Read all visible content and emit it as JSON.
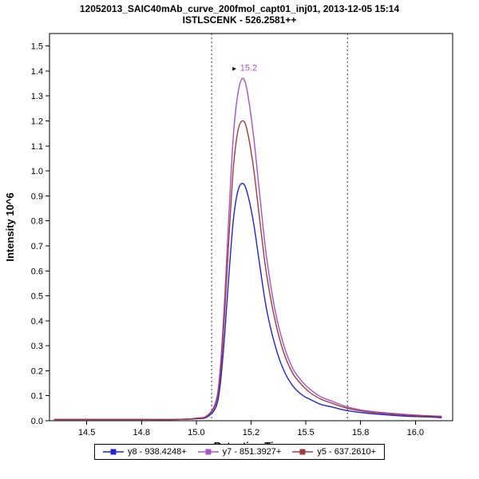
{
  "title": {
    "line1": "12052013_SAIC40mAb_curve_200fmol_capt01_inj01, 2013-12-05 15:14",
    "line2": "ISTLSCENK - 526.2581++"
  },
  "chart_data": {
    "type": "line",
    "xlabel": "Retention Time",
    "ylabel": "Intensity 10^6",
    "xlim": [
      14.33,
      16.17
    ],
    "ylim": [
      0,
      1.55
    ],
    "x_ticks": [
      {
        "pos": 14.5,
        "label": "14.5"
      },
      {
        "pos": 14.75,
        "label": "14.8"
      },
      {
        "pos": 15.0,
        "label": "15.0"
      },
      {
        "pos": 15.25,
        "label": "15.2"
      },
      {
        "pos": 15.5,
        "label": "15.5"
      },
      {
        "pos": 15.75,
        "label": "15.8"
      },
      {
        "pos": 16.0,
        "label": "16.0"
      }
    ],
    "y_ticks": [
      {
        "pos": 0.0,
        "label": "0.0"
      },
      {
        "pos": 0.1,
        "label": "0.1"
      },
      {
        "pos": 0.2,
        "label": "0.2"
      },
      {
        "pos": 0.3,
        "label": "0.3"
      },
      {
        "pos": 0.4,
        "label": "0.4"
      },
      {
        "pos": 0.5,
        "label": "0.5"
      },
      {
        "pos": 0.6,
        "label": "0.6"
      },
      {
        "pos": 0.7,
        "label": "0.7"
      },
      {
        "pos": 0.8,
        "label": "0.8"
      },
      {
        "pos": 0.9,
        "label": "0.9"
      },
      {
        "pos": 1.0,
        "label": "1.0"
      },
      {
        "pos": 1.1,
        "label": "1.1"
      },
      {
        "pos": 1.2,
        "label": "1.2"
      },
      {
        "pos": 1.3,
        "label": "1.3"
      },
      {
        "pos": 1.4,
        "label": "1.4"
      },
      {
        "pos": 1.5,
        "label": "1.5"
      }
    ],
    "x": [
      14.35,
      14.5,
      14.7,
      14.9,
      15.0,
      15.05,
      15.09,
      15.11,
      15.13,
      15.15,
      15.17,
      15.19,
      15.21,
      15.23,
      15.26,
      15.29,
      15.32,
      15.36,
      15.4,
      15.44,
      15.48,
      15.52,
      15.57,
      15.62,
      15.68,
      15.76,
      15.86,
      15.96,
      16.06,
      16.12
    ],
    "series": [
      {
        "name": "y8 - 938.4248+",
        "color": "#2222d6",
        "values": [
          0.005,
          0.005,
          0.005,
          0.005,
          0.008,
          0.015,
          0.055,
          0.15,
          0.35,
          0.6,
          0.81,
          0.92,
          0.95,
          0.92,
          0.8,
          0.62,
          0.45,
          0.3,
          0.2,
          0.14,
          0.105,
          0.085,
          0.065,
          0.055,
          0.042,
          0.032,
          0.024,
          0.018,
          0.015,
          0.012
        ]
      },
      {
        "name": "y7 - 851.3927+",
        "color": "#a852c8",
        "values": [
          0.005,
          0.005,
          0.005,
          0.005,
          0.01,
          0.02,
          0.08,
          0.22,
          0.5,
          0.85,
          1.15,
          1.31,
          1.37,
          1.33,
          1.15,
          0.9,
          0.66,
          0.44,
          0.3,
          0.21,
          0.16,
          0.125,
          0.095,
          0.078,
          0.058,
          0.042,
          0.032,
          0.025,
          0.02,
          0.018
        ]
      },
      {
        "name": "y5 - 637.2610+",
        "color": "#a03c3c",
        "values": [
          0.005,
          0.005,
          0.005,
          0.005,
          0.01,
          0.02,
          0.07,
          0.19,
          0.44,
          0.75,
          1.02,
          1.16,
          1.2,
          1.17,
          1.02,
          0.8,
          0.59,
          0.4,
          0.27,
          0.19,
          0.145,
          0.112,
          0.086,
          0.07,
          0.052,
          0.038,
          0.029,
          0.022,
          0.018,
          0.016
        ]
      }
    ],
    "boundaries": [
      15.07,
      15.69
    ],
    "annotation": {
      "x": 15.21,
      "y": 1.405,
      "label": "15.2",
      "color": "#a852c8",
      "marker": "►",
      "marker_color": "#000000"
    },
    "legend_position": "bottom",
    "grid": false
  }
}
